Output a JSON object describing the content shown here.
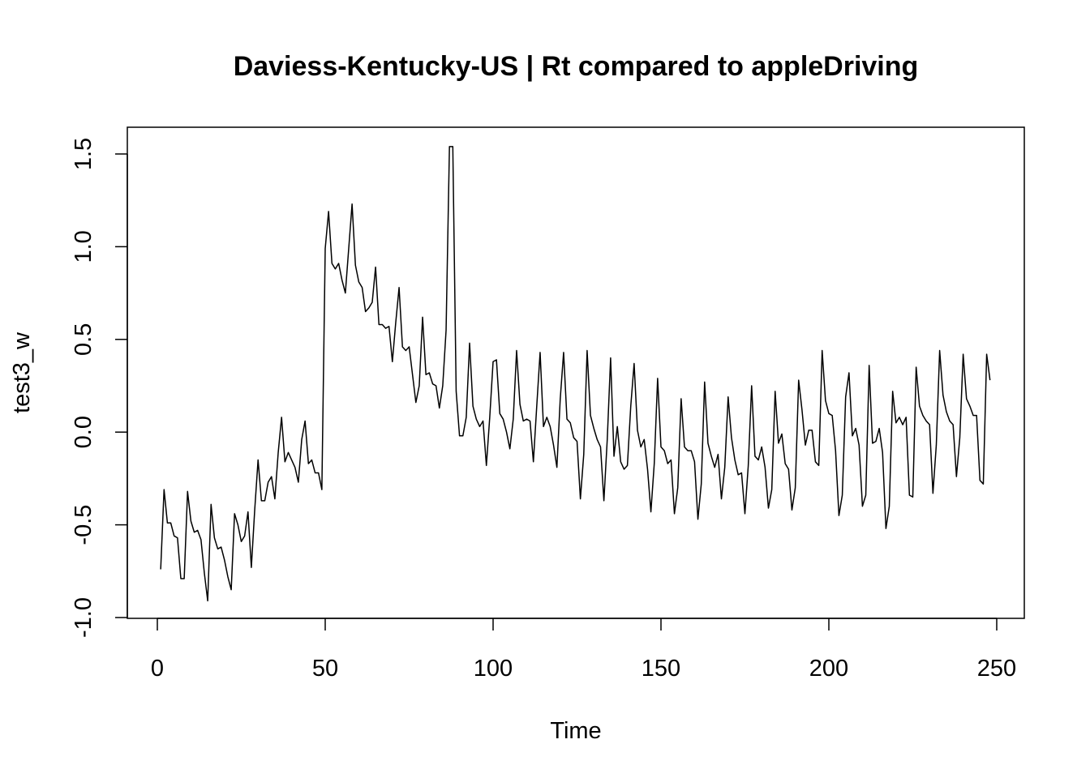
{
  "chart_data": {
    "type": "line",
    "title": "Daviess-Kentucky-US | Rt compared to appleDriving",
    "xlabel": "Time",
    "ylabel": "test3_w",
    "xlim": [
      0,
      250
    ],
    "ylim": [
      -1.0,
      1.5
    ],
    "x_ticks": [
      0,
      50,
      100,
      150,
      200,
      250
    ],
    "x_tick_labels": [
      "0",
      "50",
      "100",
      "150",
      "200",
      "250"
    ],
    "y_ticks": [
      -1.0,
      -0.5,
      0.0,
      0.5,
      1.0,
      1.5
    ],
    "y_tick_labels": [
      "-1.0",
      "-0.5",
      "0.0",
      "0.5",
      "1.0",
      "1.5"
    ],
    "grid": false,
    "line_color": "#000000",
    "x_start": 1,
    "series": [
      {
        "values": [
          -0.74,
          -0.31,
          -0.49,
          -0.49,
          -0.56,
          -0.57,
          -0.79,
          -0.79,
          -0.32,
          -0.48,
          -0.54,
          -0.53,
          -0.58,
          -0.76,
          -0.91,
          -0.39,
          -0.57,
          -0.63,
          -0.62,
          -0.69,
          -0.78,
          -0.85,
          -0.44,
          -0.5,
          -0.59,
          -0.56,
          -0.43,
          -0.73,
          -0.42,
          -0.15,
          -0.37,
          -0.37,
          -0.27,
          -0.24,
          -0.36,
          -0.11,
          0.08,
          -0.16,
          -0.11,
          -0.15,
          -0.19,
          -0.27,
          -0.04,
          0.06,
          -0.17,
          -0.15,
          -0.22,
          -0.22,
          -0.31,
          0.99,
          1.19,
          0.91,
          0.88,
          0.91,
          0.82,
          0.75,
          0.99,
          1.23,
          0.9,
          0.81,
          0.78,
          0.65,
          0.67,
          0.7,
          0.89,
          0.58,
          0.58,
          0.56,
          0.57,
          0.38,
          0.59,
          0.78,
          0.46,
          0.44,
          0.46,
          0.31,
          0.16,
          0.25,
          0.62,
          0.31,
          0.32,
          0.26,
          0.25,
          0.13,
          0.25,
          0.55,
          1.54,
          1.54,
          0.22,
          -0.02,
          -0.02,
          0.08,
          0.48,
          0.14,
          0.07,
          0.03,
          0.06,
          -0.18,
          0.08,
          0.38,
          0.39,
          0.1,
          0.07,
          0.0,
          -0.09,
          0.07,
          0.44,
          0.15,
          0.06,
          0.07,
          0.06,
          -0.16,
          0.14,
          0.43,
          0.03,
          0.08,
          0.03,
          -0.07,
          -0.19,
          0.18,
          0.43,
          0.07,
          0.05,
          -0.03,
          -0.05,
          -0.36,
          -0.12,
          0.44,
          0.09,
          0.02,
          -0.04,
          -0.08,
          -0.37,
          -0.04,
          0.4,
          -0.13,
          0.03,
          -0.16,
          -0.2,
          -0.18,
          0.14,
          0.37,
          0.01,
          -0.08,
          -0.04,
          -0.2,
          -0.43,
          -0.17,
          0.29,
          -0.08,
          -0.1,
          -0.17,
          -0.15,
          -0.44,
          -0.3,
          0.18,
          -0.08,
          -0.1,
          -0.1,
          -0.16,
          -0.47,
          -0.28,
          0.27,
          -0.06,
          -0.13,
          -0.19,
          -0.12,
          -0.36,
          -0.19,
          0.19,
          -0.03,
          -0.15,
          -0.23,
          -0.22,
          -0.44,
          -0.18,
          0.25,
          -0.13,
          -0.15,
          -0.08,
          -0.19,
          -0.41,
          -0.31,
          0.22,
          -0.06,
          -0.01,
          -0.17,
          -0.2,
          -0.42,
          -0.3,
          0.28,
          0.12,
          -0.07,
          0.01,
          0.01,
          -0.16,
          -0.18,
          0.44,
          0.17,
          0.1,
          0.09,
          -0.1,
          -0.45,
          -0.34,
          0.19,
          0.32,
          -0.02,
          0.02,
          -0.07,
          -0.4,
          -0.34,
          0.36,
          -0.06,
          -0.05,
          0.02,
          -0.11,
          -0.52,
          -0.4,
          0.22,
          0.05,
          0.08,
          0.04,
          0.08,
          -0.34,
          -0.35,
          0.35,
          0.14,
          0.09,
          0.06,
          0.04,
          -0.33,
          -0.07,
          0.44,
          0.2,
          0.11,
          0.06,
          0.04,
          -0.24,
          -0.03,
          0.42,
          0.18,
          0.14,
          0.09,
          0.09,
          -0.26,
          -0.28,
          0.42,
          0.28
        ]
      }
    ]
  }
}
